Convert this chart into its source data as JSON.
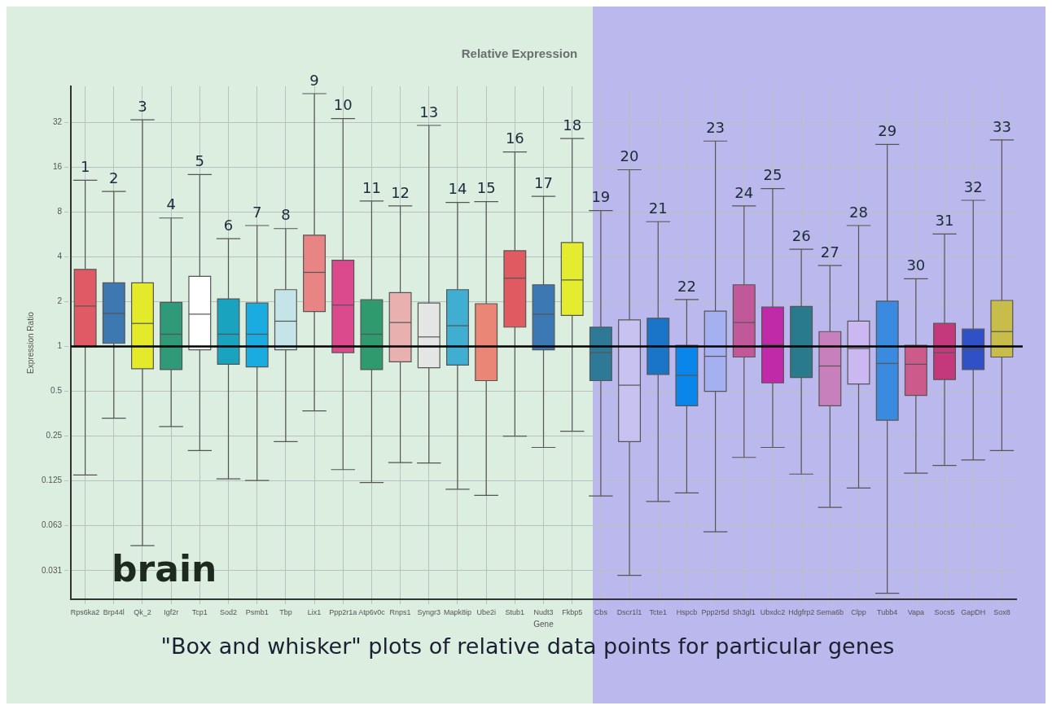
{
  "chart_data": {
    "type": "box",
    "title": "Relative Expression",
    "xlabel": "Gene",
    "ylabel": "Expression Ratio",
    "categories": [
      "Rps6ka2",
      "Brp44l",
      "Qk_2",
      "Igf2r",
      "Tcp1",
      "Sod2",
      "Psmb1",
      "Tbp",
      "Lix1",
      "Ppp2r1a",
      "Atp6v0c",
      "Rnps1",
      "Syngr3",
      "Mapk8ip",
      "Ube2i",
      "Stub1",
      "Nudt3",
      "Fkbp5",
      "Cbs",
      "Dscr1l1",
      "Tcte1",
      "Hspcb",
      "Ppp2r5d",
      "Sh3gl1",
      "Ubxdc2",
      "Hdgfrp2",
      "Sema6b",
      "Clpp",
      "Tubb4",
      "Vapa",
      "Socs5",
      "GapDH",
      "Sox8"
    ],
    "boxes": [
      {
        "low": 0.137,
        "q1": 1.0,
        "median": 1.87,
        "q3": 3.3,
        "high": 13.1
      },
      {
        "low": 0.33,
        "q1": 1.05,
        "median": 1.67,
        "q3": 2.68,
        "high": 11
      },
      {
        "low": 0.046,
        "q1": 0.71,
        "median": 1.43,
        "q3": 2.68,
        "high": 33.4
      },
      {
        "low": 0.29,
        "q1": 0.7,
        "median": 1.21,
        "q3": 1.98,
        "high": 7.3
      },
      {
        "low": 0.2,
        "q1": 0.95,
        "median": 1.65,
        "q3": 2.96,
        "high": 14.3
      },
      {
        "low": 0.129,
        "q1": 0.76,
        "median": 1.21,
        "q3": 2.09,
        "high": 5.3
      },
      {
        "low": 0.126,
        "q1": 0.73,
        "median": 1.21,
        "q3": 1.96,
        "high": 6.5
      },
      {
        "low": 0.23,
        "q1": 0.95,
        "median": 1.48,
        "q3": 2.41,
        "high": 6.2
      },
      {
        "low": 0.37,
        "q1": 1.72,
        "median": 3.15,
        "q3": 5.6,
        "high": 50
      },
      {
        "low": 0.149,
        "q1": 0.91,
        "median": 1.9,
        "q3": 3.8,
        "high": 34
      },
      {
        "low": 0.122,
        "q1": 0.7,
        "median": 1.21,
        "q3": 2.06,
        "high": 9.5
      },
      {
        "low": 0.166,
        "q1": 0.79,
        "median": 1.45,
        "q3": 2.3,
        "high": 8.8
      },
      {
        "low": 0.165,
        "q1": 0.72,
        "median": 1.16,
        "q3": 1.96,
        "high": 30.6
      },
      {
        "low": 0.11,
        "q1": 0.75,
        "median": 1.38,
        "q3": 2.41,
        "high": 9.3
      },
      {
        "low": 0.1,
        "q1": 0.59,
        "median": 1.0,
        "q3": 1.94,
        "high": 9.4
      },
      {
        "low": 0.25,
        "q1": 1.35,
        "median": 2.88,
        "q3": 4.4,
        "high": 20.3
      },
      {
        "low": 0.21,
        "q1": 0.95,
        "median": 1.65,
        "q3": 2.6,
        "high": 10.2
      },
      {
        "low": 0.27,
        "q1": 1.62,
        "median": 2.8,
        "q3": 5.0,
        "high": 25
      },
      {
        "low": 0.099,
        "q1": 0.59,
        "median": 0.91,
        "q3": 1.35,
        "high": 8.2
      },
      {
        "low": 0.029,
        "q1": 0.23,
        "median": 0.55,
        "q3": 1.51,
        "high": 15.4
      },
      {
        "low": 0.091,
        "q1": 0.65,
        "median": 1.0,
        "q3": 1.55,
        "high": 6.9
      },
      {
        "low": 0.104,
        "q1": 0.4,
        "median": 0.64,
        "q3": 1.02,
        "high": 2.07
      },
      {
        "low": 0.057,
        "q1": 0.5,
        "median": 0.86,
        "q3": 1.73,
        "high": 24
      },
      {
        "low": 0.18,
        "q1": 0.85,
        "median": 1.45,
        "q3": 2.6,
        "high": 8.8
      },
      {
        "low": 0.21,
        "q1": 0.57,
        "median": 1.03,
        "q3": 1.84,
        "high": 11.5
      },
      {
        "low": 0.139,
        "q1": 0.62,
        "median": 1.0,
        "q3": 1.86,
        "high": 4.5
      },
      {
        "low": 0.083,
        "q1": 0.4,
        "median": 0.74,
        "q3": 1.26,
        "high": 3.5
      },
      {
        "low": 0.112,
        "q1": 0.56,
        "median": 0.97,
        "q3": 1.48,
        "high": 6.5
      },
      {
        "low": 0.022,
        "q1": 0.32,
        "median": 0.77,
        "q3": 2.02,
        "high": 22.8
      },
      {
        "low": 0.141,
        "q1": 0.47,
        "median": 0.76,
        "q3": 1.02,
        "high": 2.85
      },
      {
        "low": 0.159,
        "q1": 0.6,
        "median": 0.91,
        "q3": 1.43,
        "high": 5.7
      },
      {
        "low": 0.173,
        "q1": 0.7,
        "median": 0.95,
        "q3": 1.31,
        "high": 9.6
      },
      {
        "low": 0.2,
        "q1": 0.85,
        "median": 1.26,
        "q3": 2.04,
        "high": 24.4
      }
    ],
    "colors": [
      "#e05a66",
      "#3d78b0",
      "#e3ea2a",
      "#2e9a78",
      "#ffffff",
      "#1aa3bf",
      "#1aabe0",
      "#c4e4e8",
      "#e88484",
      "#dc4a8e",
      "#2e9a6e",
      "#e8b0ae",
      "#e4e6e6",
      "#40aed0",
      "#ea8676",
      "#e05a62",
      "#3b78b4",
      "#e4ec30",
      "#2e7a96",
      "#c8c2f0",
      "#1a74c8",
      "#0a86ea",
      "#a4b0f0",
      "#c0589a",
      "#c02aa8",
      "#2a7a8e",
      "#c880bc",
      "#ccb8f0",
      "#3a8ae0",
      "#cc5a8a",
      "#c4387c",
      "#3050c8",
      "#c8bc4a"
    ],
    "log": true,
    "ylim": [
      0.02,
      56
    ],
    "yticks": [
      {
        "value": 0.03125,
        "label": "0.031"
      },
      {
        "value": 0.0625,
        "label": "0.063"
      },
      0.125,
      0.25,
      0.5,
      1,
      2,
      4,
      8,
      16,
      32
    ],
    "grid": true,
    "legend": false,
    "ref_lines": [
      {
        "axis": "y",
        "value": 1,
        "color": "#000000"
      }
    ],
    "annotations": [
      {
        "text": "1",
        "x": "Rps6ka2",
        "y": 13.1
      },
      {
        "text": "2",
        "x": "Brp44l",
        "y": 11
      },
      {
        "text": "3",
        "x": "Qk_2",
        "y": 33.4
      },
      {
        "text": "4",
        "x": "Igf2r",
        "y": 7.3
      },
      {
        "text": "5",
        "x": "Tcp1",
        "y": 14.3
      },
      {
        "text": "6",
        "x": "Sod2",
        "y": 5.3
      },
      {
        "text": "7",
        "x": "Psmb1",
        "y": 6.5
      },
      {
        "text": "8",
        "x": "Tbp",
        "y": 6.2
      },
      {
        "text": "9",
        "x": "Lix1",
        "y": 50
      },
      {
        "text": "10",
        "x": "Ppp2r1a",
        "y": 34
      },
      {
        "text": "11",
        "x": "Atp6v0c",
        "y": 9.5
      },
      {
        "text": "12",
        "x": "Rnps1",
        "y": 8.8
      },
      {
        "text": "13",
        "x": "Syngr3",
        "y": 30.6
      },
      {
        "text": "14",
        "x": "Mapk8ip",
        "y": 9.3
      },
      {
        "text": "15",
        "x": "Ube2i",
        "y": 9.4
      },
      {
        "text": "16",
        "x": "Stub1",
        "y": 20.3
      },
      {
        "text": "17",
        "x": "Nudt3",
        "y": 10.2
      },
      {
        "text": "18",
        "x": "Fkbp5",
        "y": 25
      },
      {
        "text": "19",
        "x": "Cbs",
        "y": 8.2
      },
      {
        "text": "20",
        "x": "Dscr1l1",
        "y": 15.4
      },
      {
        "text": "21",
        "x": "Tcte1",
        "y": 6.9
      },
      {
        "text": "22",
        "x": "Hspcb",
        "y": 2.07
      },
      {
        "text": "23",
        "x": "Ppp2r5d",
        "y": 24
      },
      {
        "text": "24",
        "x": "Sh3gl1",
        "y": 8.8
      },
      {
        "text": "25",
        "x": "Ubxdc2",
        "y": 11.5
      },
      {
        "text": "26",
        "x": "Hdgfrp2",
        "y": 4.5
      },
      {
        "text": "27",
        "x": "Sema6b",
        "y": 3.5
      },
      {
        "text": "28",
        "x": "Clpp",
        "y": 6.5
      },
      {
        "text": "29",
        "x": "Tubb4",
        "y": 22.8
      },
      {
        "text": "30",
        "x": "Vapa",
        "y": 2.85
      },
      {
        "text": "31",
        "x": "Socs5",
        "y": 5.7
      },
      {
        "text": "32",
        "x": "GapDH",
        "y": 9.6
      },
      {
        "text": "33",
        "x": "Sox8",
        "y": 24.4
      },
      "brain",
      "\"Box and whisker\" plots of relative data points for particular genes"
    ]
  }
}
